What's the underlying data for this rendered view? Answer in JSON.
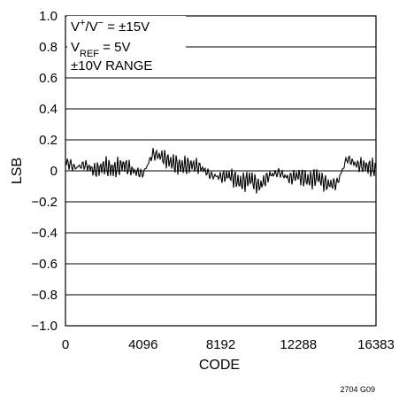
{
  "chart_data": {
    "type": "line",
    "xlabel": "CODE",
    "ylabel": "LSB",
    "xlim": [
      0,
      16383
    ],
    "ylim": [
      -1.0,
      1.0
    ],
    "x_ticks": [
      "0",
      "4096",
      "8192",
      "12288",
      "16383"
    ],
    "y_ticks": [
      "1.0",
      "0.8",
      "0.6",
      "0.4",
      "0.2",
      "0",
      "−0.2",
      "−0.4",
      "−0.6",
      "−0.8",
      "−1.0"
    ],
    "grid": true,
    "conditions": {
      "line1": {
        "base": "V",
        "sup1": "+",
        "mid": "/V",
        "sup2": "−",
        "rest": " = ±15V"
      },
      "line2": {
        "base": "V",
        "sub": "REF",
        "rest": " = 5V"
      },
      "line3": "±10V RANGE"
    },
    "figure_id": "2704 G09",
    "series": [
      {
        "color": "#000000",
        "x": [
          0,
          512,
          1024,
          1536,
          2048,
          2560,
          3072,
          3584,
          4096,
          4608,
          5120,
          5632,
          6144,
          6656,
          7168,
          7680,
          8192,
          8704,
          9216,
          9728,
          10240,
          10752,
          11264,
          11776,
          12288,
          12800,
          13312,
          13824,
          14336,
          14848,
          15360,
          15872,
          16383
        ],
        "values": [
          0.06,
          0.02,
          0.04,
          0.0,
          0.03,
          0.01,
          0.04,
          0.0,
          -0.02,
          0.11,
          0.09,
          0.05,
          0.03,
          0.04,
          0.02,
          -0.03,
          -0.04,
          -0.03,
          -0.08,
          -0.05,
          -0.1,
          -0.03,
          -0.01,
          -0.05,
          -0.03,
          -0.06,
          -0.04,
          -0.09,
          -0.08,
          0.08,
          0.04,
          0.03,
          0.01
        ]
      }
    ]
  }
}
